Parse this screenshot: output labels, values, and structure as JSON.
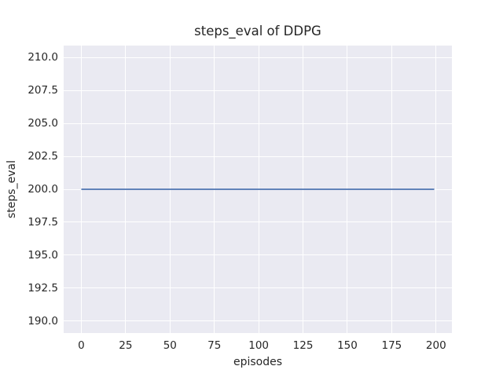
{
  "chart_data": {
    "type": "line",
    "title": "steps_eval of DDPG",
    "xlabel": "episodes",
    "ylabel": "steps_eval",
    "x_ticks": [
      0,
      25,
      50,
      75,
      100,
      125,
      150,
      175,
      200
    ],
    "x_tick_labels": [
      "0",
      "25",
      "50",
      "75",
      "100",
      "125",
      "150",
      "175",
      "200"
    ],
    "y_ticks": [
      190.0,
      192.5,
      195.0,
      197.5,
      200.0,
      202.5,
      205.0,
      207.5,
      210.0
    ],
    "y_tick_labels": [
      "190.0",
      "192.5",
      "195.0",
      "197.5",
      "200.0",
      "202.5",
      "205.0",
      "207.5",
      "210.0"
    ],
    "xlim": [
      -9.95,
      208.95
    ],
    "ylim": [
      189.1,
      210.9
    ],
    "grid": true,
    "legend_position": "none",
    "style": "seaborn-darkgrid",
    "series": [
      {
        "name": "steps_eval",
        "x": [
          0,
          199
        ],
        "y": [
          200,
          200
        ],
        "color": "#4C72B0"
      }
    ],
    "colors": {
      "figure_background": "#FFFFFF",
      "axes_background": "#EAEAF2",
      "gridline": "#FFFFFF",
      "line": "#4C72B0",
      "text": "#262626"
    }
  }
}
